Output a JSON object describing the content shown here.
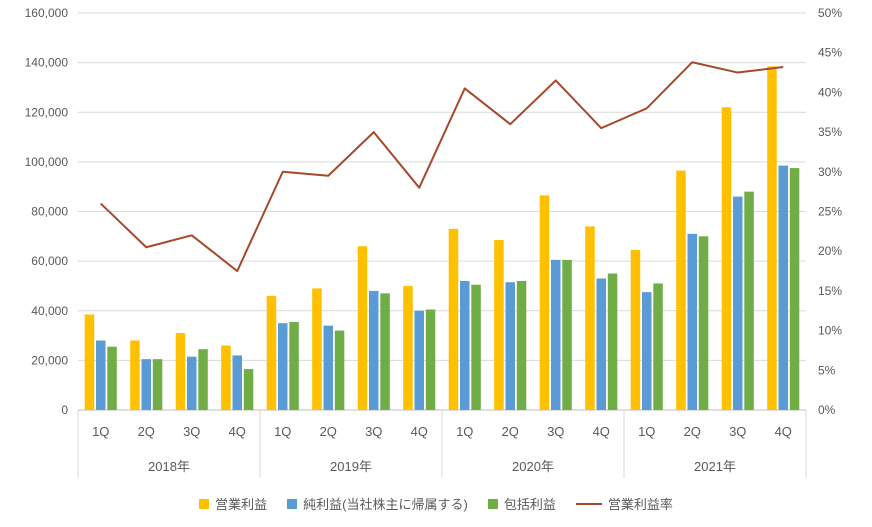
{
  "chart_data": {
    "type": "combo-bar-line",
    "title": "",
    "categories": [
      "1Q",
      "2Q",
      "3Q",
      "4Q",
      "1Q",
      "2Q",
      "3Q",
      "4Q",
      "1Q",
      "2Q",
      "3Q",
      "4Q",
      "1Q",
      "2Q",
      "3Q",
      "4Q"
    ],
    "year_groups": [
      {
        "label": "2018年",
        "span": 4
      },
      {
        "label": "2019年",
        "span": 4
      },
      {
        "label": "2020年",
        "span": 4
      },
      {
        "label": "2021年",
        "span": 4
      }
    ],
    "bar_series": [
      {
        "name": "営業利益",
        "color": "#FFC000",
        "axis": "left",
        "values": [
          38500,
          28000,
          31000,
          26000,
          46000,
          49000,
          66000,
          50000,
          73000,
          68500,
          86500,
          74000,
          64500,
          96500,
          122000,
          138500
        ]
      },
      {
        "name": "純利益(当社株主に帰属する)",
        "color": "#5B9BD5",
        "axis": "left",
        "values": [
          28000,
          20500,
          21500,
          22000,
          35000,
          34000,
          48000,
          40000,
          52000,
          51500,
          60500,
          53000,
          47500,
          71000,
          86000,
          98500
        ]
      },
      {
        "name": "包括利益",
        "color": "#70AD47",
        "axis": "left",
        "values": [
          25500,
          20500,
          24500,
          16500,
          35500,
          32000,
          47000,
          40500,
          50500,
          52000,
          60500,
          55000,
          51000,
          70000,
          88000,
          97500
        ]
      }
    ],
    "line_series": {
      "name": "営業利益率",
      "color": "#A6492B",
      "axis": "right",
      "values": [
        26,
        20.5,
        22,
        17.5,
        30,
        29.5,
        35,
        28,
        40.5,
        36,
        41.5,
        35.5,
        38,
        43.8,
        42.5,
        43.2
      ]
    },
    "left_axis": {
      "min": 0,
      "max": 160000,
      "step": 20000,
      "tick_labels": [
        "0",
        "20,000",
        "40,000",
        "60,000",
        "80,000",
        "100,000",
        "120,000",
        "140,000",
        "160,000"
      ]
    },
    "right_axis": {
      "min": 0,
      "max": 50,
      "step": 5,
      "tick_labels": [
        "0%",
        "5%",
        "10%",
        "15%",
        "20%",
        "25%",
        "30%",
        "35%",
        "40%",
        "45%",
        "50%"
      ]
    },
    "grid": "horizontal",
    "gridline_color": "#D9D9D9",
    "axis_line_color": "#BFBFBF",
    "axis_text_color": "#595959",
    "legend_position": "bottom"
  }
}
